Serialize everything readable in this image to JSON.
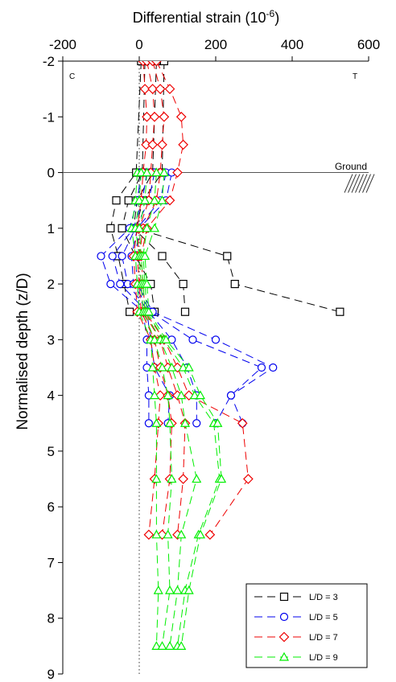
{
  "chart_data": {
    "type": "line",
    "orientation": "profile",
    "xlabel": "Differential strain (10",
    "xlabel_sup": "-6",
    "xlabel_tail": ")",
    "ylabel": "Normalised depth (z/D)",
    "xlim": [
      -200,
      600
    ],
    "ylim": [
      -2,
      9
    ],
    "x_ticks": [
      "-200",
      "0",
      "200",
      "400",
      "600"
    ],
    "y_ticks": [
      "-2",
      "-1",
      "0",
      "1",
      "2",
      "3",
      "4",
      "5",
      "6",
      "7",
      "8",
      "9"
    ],
    "corner_left": "C",
    "corner_right": "T",
    "ground_label": "Ground",
    "ground_depth": 0,
    "reference_line_x": 0,
    "series": [
      {
        "name": "L/D = 3",
        "color": "#000000",
        "marker": "square",
        "profiles": [
          [
            [
              5,
              -2
            ],
            [
              -8,
              0
            ],
            [
              -60,
              0.5
            ],
            [
              -75,
              1
            ],
            [
              -55,
              1.5
            ],
            [
              -40,
              2
            ],
            [
              -25,
              2.5
            ]
          ],
          [
            [
              15,
              -2
            ],
            [
              8,
              0
            ],
            [
              -28,
              0.5
            ],
            [
              -45,
              1
            ],
            [
              -10,
              1.5
            ],
            [
              30,
              2
            ],
            [
              40,
              2.5
            ]
          ],
          [
            [
              45,
              -2
            ],
            [
              35,
              0
            ],
            [
              -5,
              0.5
            ],
            [
              -15,
              1
            ],
            [
              60,
              1.5
            ],
            [
              115,
              2
            ],
            [
              120,
              2.5
            ]
          ],
          [
            [
              65,
              -2
            ],
            [
              60,
              0
            ],
            [
              10,
              0.5
            ],
            [
              -10,
              1
            ],
            [
              230,
              1.5
            ],
            [
              250,
              2
            ],
            [
              525,
              2.5
            ]
          ]
        ]
      },
      {
        "name": "L/D = 5",
        "color": "#0000ee",
        "marker": "circle",
        "profiles": [
          [
            [
              5,
              0
            ],
            [
              -5,
              0.5
            ],
            [
              -25,
              1
            ],
            [
              -100,
              1.5
            ],
            [
              -75,
              2
            ],
            [
              10,
              2.5
            ],
            [
              20,
              3
            ],
            [
              20,
              3.5
            ],
            [
              25,
              4
            ],
            [
              25,
              4.5
            ]
          ],
          [
            [
              20,
              0
            ],
            [
              8,
              0.5
            ],
            [
              -15,
              1
            ],
            [
              -70,
              1.5
            ],
            [
              -50,
              2
            ],
            [
              20,
              2.5
            ],
            [
              30,
              3
            ],
            [
              40,
              3.5
            ],
            [
              80,
              4
            ],
            [
              75,
              4.5
            ]
          ],
          [
            [
              40,
              0
            ],
            [
              25,
              0.5
            ],
            [
              -10,
              1
            ],
            [
              -45,
              1.5
            ],
            [
              -30,
              2
            ],
            [
              25,
              2.5
            ],
            [
              85,
              3
            ],
            [
              125,
              3.5
            ],
            [
              150,
              4
            ],
            [
              150,
              4.5
            ]
          ],
          [
            [
              70,
              0
            ],
            [
              55,
              0.5
            ],
            [
              -5,
              1
            ],
            [
              -20,
              1.5
            ],
            [
              -15,
              2
            ],
            [
              30,
              2.5
            ],
            [
              140,
              3
            ],
            [
              320,
              3.5
            ],
            [
              240,
              4
            ],
            [
              200,
              4.5
            ]
          ],
          [
            [
              85,
              0
            ],
            [
              70,
              0.5
            ],
            [
              0,
              1
            ],
            [
              -10,
              1.5
            ],
            [
              -5,
              2
            ],
            [
              35,
              2.5
            ],
            [
              200,
              3
            ],
            [
              350,
              3.5
            ],
            [
              240,
              4
            ],
            [
              270,
              4.5
            ]
          ]
        ]
      },
      {
        "name": "L/D = 7",
        "color": "#ee0000",
        "marker": "diamond",
        "profiles": [
          [
            [
              10,
              -2
            ],
            [
              15,
              -1.5
            ],
            [
              20,
              -1
            ],
            [
              18,
              -0.5
            ],
            [
              10,
              0
            ],
            [
              5,
              0.5
            ],
            [
              -5,
              1
            ],
            [
              -15,
              1.5
            ],
            [
              -10,
              2
            ],
            [
              -5,
              2.5
            ],
            [
              30,
              3
            ],
            [
              40,
              3.5
            ],
            [
              55,
              4
            ],
            [
              50,
              4.5
            ],
            [
              40,
              5.5
            ],
            [
              25,
              6.5
            ]
          ],
          [
            [
              20,
              -2
            ],
            [
              35,
              -1.5
            ],
            [
              40,
              -1
            ],
            [
              35,
              -0.5
            ],
            [
              30,
              0
            ],
            [
              25,
              0.5
            ],
            [
              0,
              1
            ],
            [
              -5,
              1.5
            ],
            [
              0,
              2
            ],
            [
              5,
              2.5
            ],
            [
              40,
              3
            ],
            [
              55,
              3.5
            ],
            [
              75,
              4
            ],
            [
              85,
              4.5
            ],
            [
              80,
              5.5
            ],
            [
              60,
              6.5
            ]
          ],
          [
            [
              35,
              -2
            ],
            [
              55,
              -1.5
            ],
            [
              65,
              -1
            ],
            [
              60,
              -0.5
            ],
            [
              55,
              0
            ],
            [
              45,
              0.5
            ],
            [
              10,
              1
            ],
            [
              0,
              1.5
            ],
            [
              5,
              2
            ],
            [
              10,
              2.5
            ],
            [
              55,
              3
            ],
            [
              75,
              3.5
            ],
            [
              100,
              4
            ],
            [
              120,
              4.5
            ],
            [
              115,
              5.5
            ],
            [
              100,
              6.5
            ]
          ],
          [
            [
              45,
              -2
            ],
            [
              80,
              -1.5
            ],
            [
              110,
              -1
            ],
            [
              115,
              -0.5
            ],
            [
              100,
              0
            ],
            [
              80,
              0.5
            ],
            [
              20,
              1
            ],
            [
              5,
              1.5
            ],
            [
              10,
              2
            ],
            [
              15,
              2.5
            ],
            [
              65,
              3
            ],
            [
              100,
              3.5
            ],
            [
              130,
              4
            ],
            [
              270,
              4.5
            ],
            [
              285,
              5.5
            ],
            [
              185,
              6.5
            ]
          ]
        ]
      },
      {
        "name": "L/D = 9",
        "color": "#00ee00",
        "marker": "triangle",
        "profiles": [
          [
            [
              -5,
              0
            ],
            [
              -10,
              0.5
            ],
            [
              -20,
              1
            ],
            [
              -10,
              1.5
            ],
            [
              -5,
              2
            ],
            [
              0,
              2.5
            ],
            [
              30,
              3
            ],
            [
              35,
              3.5
            ],
            [
              40,
              4
            ],
            [
              45,
              4.5
            ],
            [
              45,
              5.5
            ],
            [
              45,
              6.5
            ],
            [
              50,
              7.5
            ],
            [
              45,
              8.5
            ]
          ],
          [
            [
              5,
              0
            ],
            [
              0,
              0.5
            ],
            [
              -10,
              1
            ],
            [
              0,
              1.5
            ],
            [
              5,
              2
            ],
            [
              10,
              2.5
            ],
            [
              40,
              3
            ],
            [
              60,
              3.5
            ],
            [
              75,
              4
            ],
            [
              80,
              4.5
            ],
            [
              85,
              5.5
            ],
            [
              75,
              6.5
            ],
            [
              80,
              7.5
            ],
            [
              60,
              8.5
            ]
          ],
          [
            [
              20,
              0
            ],
            [
              15,
              0.5
            ],
            [
              0,
              1
            ],
            [
              5,
              1.5
            ],
            [
              10,
              2
            ],
            [
              15,
              2.5
            ],
            [
              55,
              3
            ],
            [
              85,
              3.5
            ],
            [
              110,
              4
            ],
            [
              120,
              4.5
            ],
            [
              150,
              5.5
            ],
            [
              110,
              6.5
            ],
            [
              100,
              7.5
            ],
            [
              80,
              8.5
            ]
          ],
          [
            [
              45,
              0
            ],
            [
              40,
              0.5
            ],
            [
              20,
              1
            ],
            [
              10,
              1.5
            ],
            [
              15,
              2
            ],
            [
              20,
              2.5
            ],
            [
              65,
              3
            ],
            [
              115,
              3.5
            ],
            [
              145,
              4
            ],
            [
              195,
              4.5
            ],
            [
              210,
              5.5
            ],
            [
              155,
              6.5
            ],
            [
              120,
              7.5
            ],
            [
              100,
              8.5
            ]
          ],
          [
            [
              65,
              0
            ],
            [
              60,
              0.5
            ],
            [
              40,
              1
            ],
            [
              15,
              1.5
            ],
            [
              20,
              2
            ],
            [
              25,
              2.5
            ],
            [
              70,
              3
            ],
            [
              130,
              3.5
            ],
            [
              160,
              4
            ],
            [
              205,
              4.5
            ],
            [
              215,
              5.5
            ],
            [
              160,
              6.5
            ],
            [
              130,
              7.5
            ],
            [
              110,
              8.5
            ]
          ]
        ]
      }
    ],
    "legend": {
      "position": "bottom-right"
    }
  }
}
